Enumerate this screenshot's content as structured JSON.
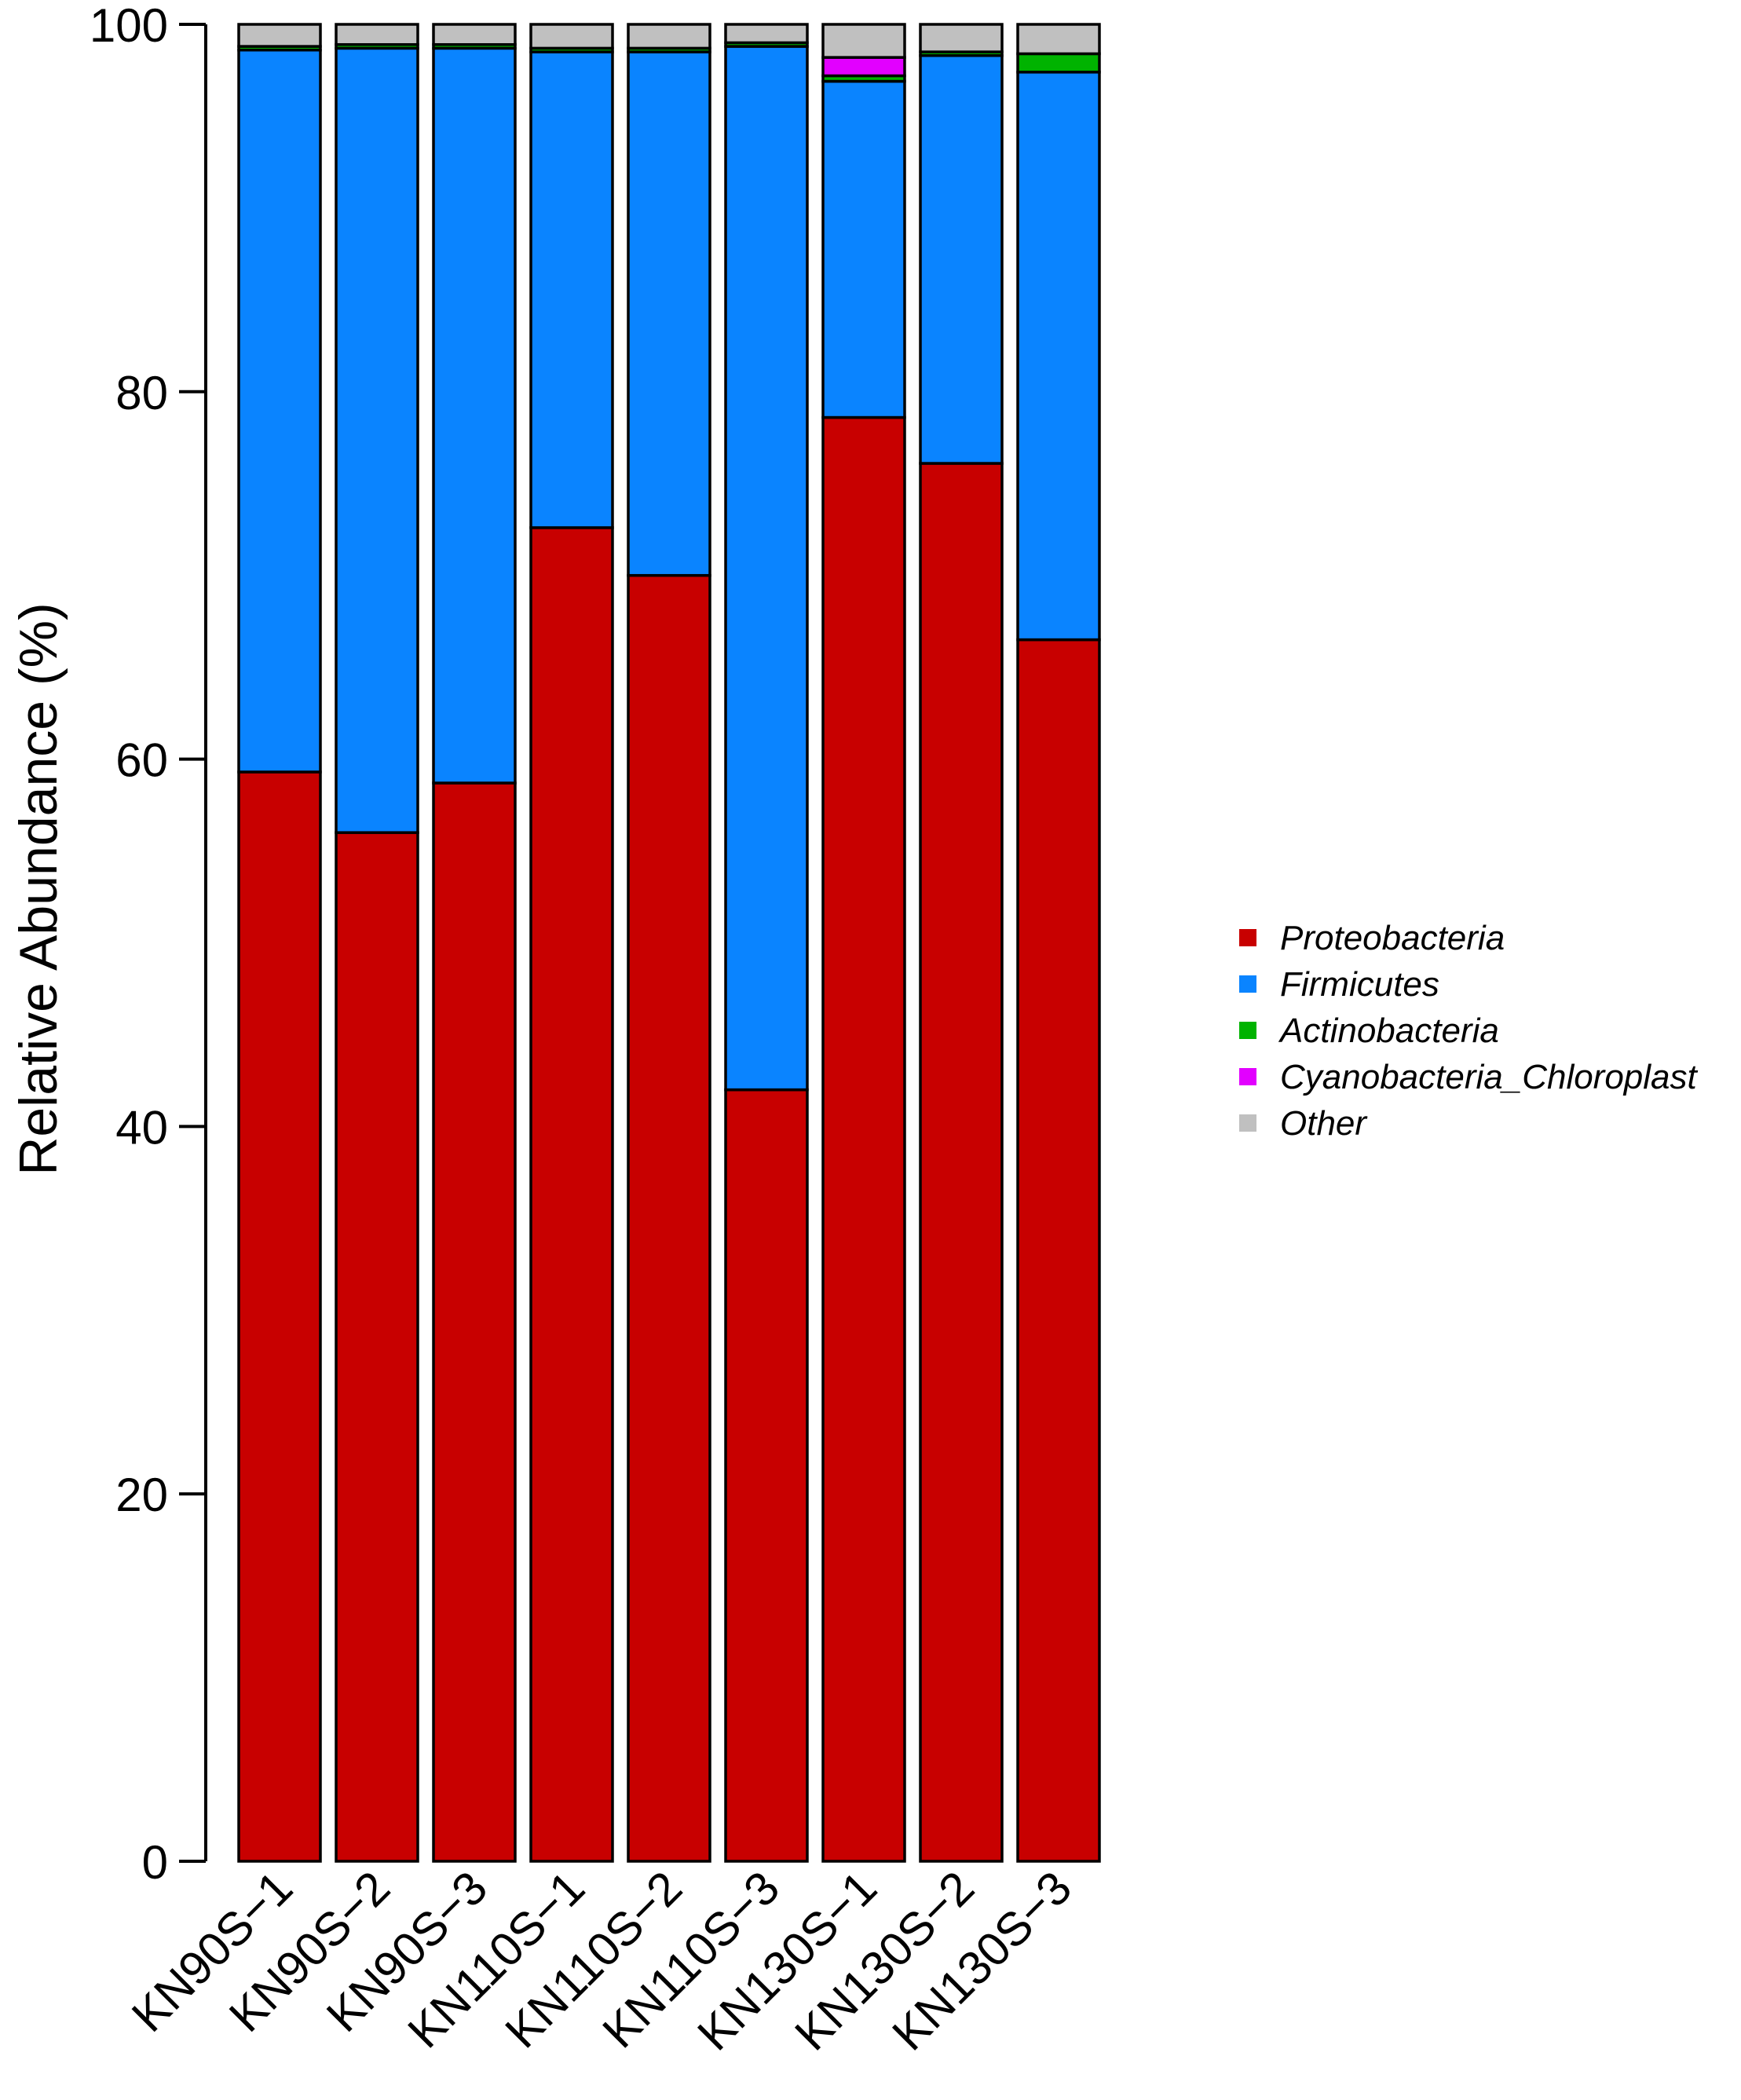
{
  "chart_data": {
    "type": "bar",
    "stacked": true,
    "title": "",
    "xlabel": "",
    "ylabel": "Relative Abundance (%)",
    "ylim": [
      0,
      100
    ],
    "yticks": [
      0,
      20,
      40,
      60,
      80,
      100
    ],
    "categories": [
      "KN90S−1",
      "KN90S−2",
      "KN90S−3",
      "KN110S−1",
      "KN110S−2",
      "KN110S−3",
      "KN130S−1",
      "KN130S−2",
      "KN130S−3"
    ],
    "series": [
      {
        "name": "Proteobacteria",
        "color": "#c80000",
        "values": [
          59.3,
          56.0,
          58.7,
          72.6,
          70.0,
          42.0,
          78.6,
          76.1,
          66.5
        ]
      },
      {
        "name": "Firmicutes",
        "color": "#0a84ff",
        "values": [
          39.3,
          42.7,
          40.0,
          25.9,
          28.5,
          56.8,
          18.3,
          22.2,
          30.9
        ]
      },
      {
        "name": "Actinobacteria",
        "color": "#00b300",
        "values": [
          0.2,
          0.2,
          0.2,
          0.2,
          0.2,
          0.2,
          0.3,
          0.2,
          1.0
        ]
      },
      {
        "name": "Cyanobacteria_Chloroplast",
        "color": "#e200ff",
        "values": [
          0.0,
          0.0,
          0.0,
          0.0,
          0.0,
          0.0,
          1.0,
          0.0,
          0.0
        ]
      },
      {
        "name": "Other",
        "color": "#c0c0c0",
        "values": [
          1.2,
          1.1,
          1.1,
          1.3,
          1.3,
          1.0,
          1.8,
          1.5,
          1.6
        ]
      }
    ],
    "legend": {
      "position": "right",
      "entries": [
        "Proteobacteria",
        "Firmicutes",
        "Actinobacteria",
        "Cyanobacteria_Chloroplast",
        "Other"
      ]
    }
  }
}
